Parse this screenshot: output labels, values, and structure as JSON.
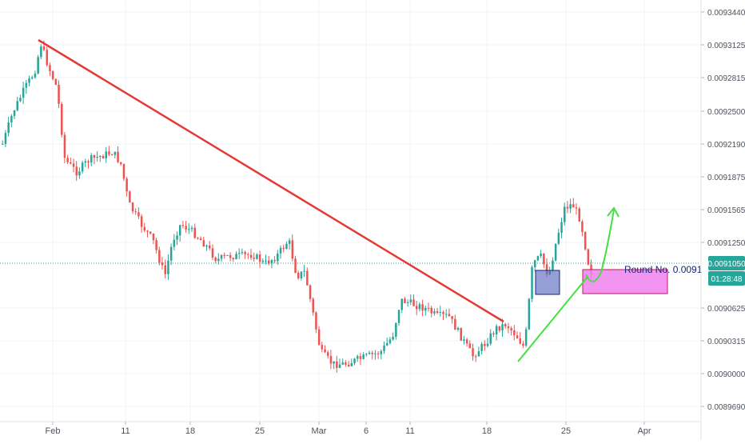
{
  "chart_data": {
    "type": "candlestick",
    "x_axis": {
      "type": "date",
      "ticks": [
        "Feb",
        "11",
        "18",
        "25",
        "Mar",
        "6",
        "11",
        "18",
        "25",
        "Apr"
      ]
    },
    "y_axis": {
      "position": "right",
      "ticks": [
        "0.0093440",
        "0.0093125",
        "0.0092815",
        "0.0092500",
        "0.0092190",
        "0.0091875",
        "0.0091565",
        "0.0091250",
        "0.0090625",
        "0.0090315",
        "0.0090000",
        "0.0089690"
      ],
      "ylim": [
        0.008952,
        0.009365
      ]
    },
    "price_line": {
      "value": 0.009105,
      "label": "0.0091050",
      "countdown": "01:28:48",
      "color": "#26a69a"
    },
    "annotations": {
      "round_number_label": "Round No. 0.0091",
      "downtrend_line": {
        "color": "#e53935",
        "from": [
          0.00931,
          0.00932
        ],
        "to": [
          0.00905,
          0.00905
        ]
      },
      "uptrend_line": {
        "color": "#43e043"
      },
      "blue_box_color": "#5c6bc0",
      "pink_box_color": "#ee82ee",
      "forecast_arrow_color": "#43e043"
    },
    "colors": {
      "up": "#26a69a",
      "down": "#ef5350",
      "grid": "#f0f3fa",
      "axis_text": "#4c525e"
    }
  }
}
